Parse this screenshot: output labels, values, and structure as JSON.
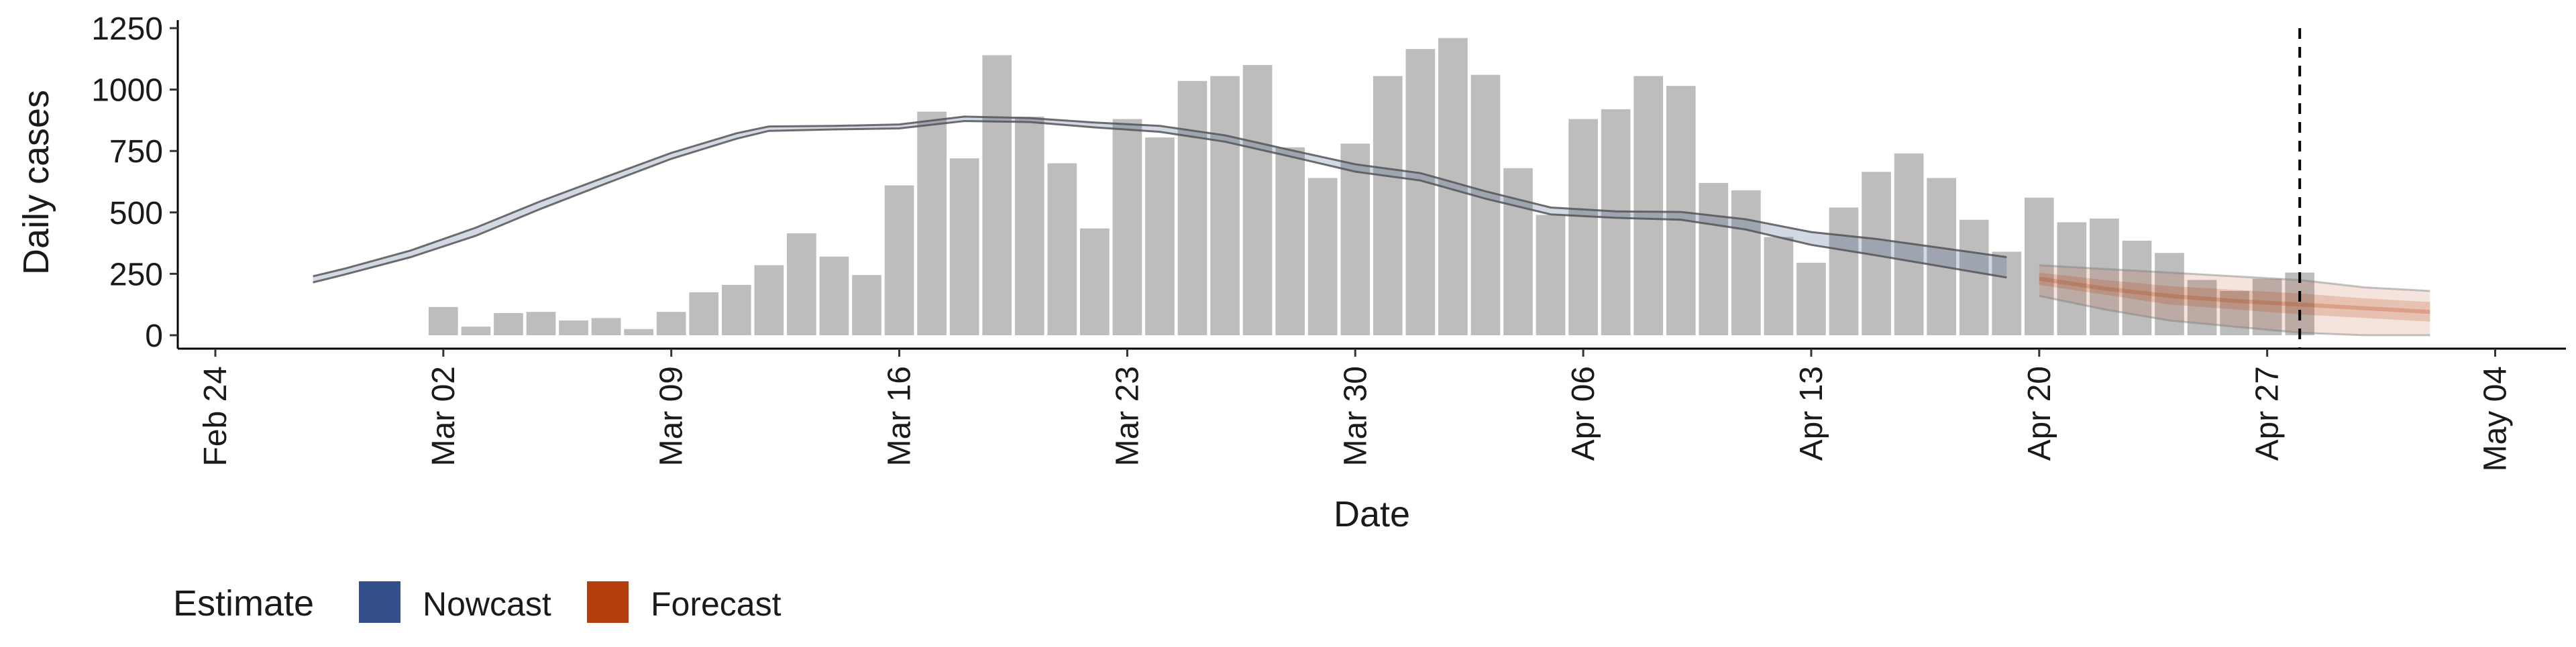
{
  "chart_data": {
    "type": "bar",
    "xlabel": "Date",
    "ylabel": "Daily cases",
    "ylim": [
      0,
      1250
    ],
    "yticks": [
      0,
      250,
      500,
      750,
      1000,
      1250
    ],
    "xtick_labels": [
      {
        "date": "2020-02-24",
        "label": "Feb 24"
      },
      {
        "date": "2020-03-02",
        "label": "Mar 02"
      },
      {
        "date": "2020-03-09",
        "label": "Mar 09"
      },
      {
        "date": "2020-03-16",
        "label": "Mar 16"
      },
      {
        "date": "2020-03-23",
        "label": "Mar 23"
      },
      {
        "date": "2020-03-30",
        "label": "Mar 30"
      },
      {
        "date": "2020-04-06",
        "label": "Apr 06"
      },
      {
        "date": "2020-04-13",
        "label": "Apr 13"
      },
      {
        "date": "2020-04-20",
        "label": "Apr 20"
      },
      {
        "date": "2020-04-27",
        "label": "Apr 27"
      },
      {
        "date": "2020-05-04",
        "label": "May 04"
      }
    ],
    "xlim": [
      "2020-02-24",
      "2020-05-04"
    ],
    "grid": false,
    "legend_position": "bottom-left",
    "legend": {
      "title": "Estimate",
      "items": [
        {
          "label": "Nowcast",
          "color": "#34508a"
        },
        {
          "label": "Forecast",
          "color": "#b33d0c"
        }
      ]
    },
    "colors": {
      "bar": "#bdbdbd",
      "nowcast_band": "#34508a",
      "forecast_band": "#b33d0c",
      "line": "#555555"
    },
    "vline_date": "2020-04-28",
    "bars": {
      "dates": [
        "2020-03-02",
        "2020-03-03",
        "2020-03-04",
        "2020-03-05",
        "2020-03-06",
        "2020-03-07",
        "2020-03-08",
        "2020-03-09",
        "2020-03-10",
        "2020-03-11",
        "2020-03-12",
        "2020-03-13",
        "2020-03-14",
        "2020-03-15",
        "2020-03-16",
        "2020-03-17",
        "2020-03-18",
        "2020-03-19",
        "2020-03-20",
        "2020-03-21",
        "2020-03-22",
        "2020-03-23",
        "2020-03-24",
        "2020-03-25",
        "2020-03-26",
        "2020-03-27",
        "2020-03-28",
        "2020-03-29",
        "2020-03-30",
        "2020-03-31",
        "2020-04-01",
        "2020-04-02",
        "2020-04-03",
        "2020-04-04",
        "2020-04-05",
        "2020-04-06",
        "2020-04-07",
        "2020-04-08",
        "2020-04-09",
        "2020-04-10",
        "2020-04-11",
        "2020-04-12",
        "2020-04-13",
        "2020-04-14",
        "2020-04-15",
        "2020-04-16",
        "2020-04-17",
        "2020-04-18",
        "2020-04-19",
        "2020-04-20",
        "2020-04-21",
        "2020-04-22",
        "2020-04-23",
        "2020-04-24",
        "2020-04-25",
        "2020-04-26",
        "2020-04-27",
        "2020-04-28"
      ],
      "values": [
        115,
        35,
        90,
        95,
        60,
        70,
        25,
        95,
        175,
        205,
        285,
        415,
        320,
        245,
        610,
        910,
        720,
        1140,
        890,
        700,
        435,
        880,
        805,
        1035,
        1055,
        1100,
        765,
        640,
        780,
        1055,
        1165,
        1210,
        1060,
        680,
        490,
        880,
        920,
        1055,
        1015,
        620,
        590,
        400,
        295,
        520,
        665,
        740,
        640,
        470,
        340,
        560,
        460,
        475,
        385,
        335,
        225,
        180,
        230,
        255
      ]
    },
    "nowcast": {
      "dates": [
        "2020-02-27",
        "2020-02-28",
        "2020-03-01",
        "2020-03-03",
        "2020-03-05",
        "2020-03-07",
        "2020-03-09",
        "2020-03-11",
        "2020-03-12",
        "2020-03-14",
        "2020-03-16",
        "2020-03-18",
        "2020-03-20",
        "2020-03-22",
        "2020-03-24",
        "2020-03-26",
        "2020-03-28",
        "2020-03-30",
        "2020-04-01",
        "2020-04-03",
        "2020-04-05",
        "2020-04-07",
        "2020-04-09",
        "2020-04-11",
        "2020-04-13",
        "2020-04-15",
        "2020-04-17",
        "2020-04-19"
      ],
      "median": [
        225,
        260,
        330,
        420,
        530,
        630,
        730,
        810,
        840,
        845,
        850,
        880,
        875,
        855,
        840,
        800,
        740,
        680,
        645,
        570,
        505,
        490,
        485,
        450,
        395,
        360,
        320,
        285
      ],
      "lower": [
        215,
        248,
        318,
        405,
        515,
        618,
        718,
        800,
        832,
        838,
        842,
        872,
        868,
        846,
        828,
        788,
        728,
        666,
        630,
        556,
        492,
        478,
        470,
        430,
        368,
        325,
        280,
        235
      ],
      "upper": [
        240,
        272,
        345,
        438,
        546,
        645,
        742,
        822,
        850,
        852,
        858,
        890,
        884,
        866,
        852,
        814,
        754,
        696,
        660,
        586,
        520,
        504,
        502,
        472,
        420,
        392,
        355,
        318
      ]
    },
    "forecast": {
      "dates": [
        "2020-04-20",
        "2020-04-22",
        "2020-04-24",
        "2020-04-26",
        "2020-04-28",
        "2020-04-30",
        "2020-05-02"
      ],
      "median": [
        230,
        190,
        160,
        140,
        125,
        110,
        95
      ],
      "lower_90": [
        160,
        105,
        60,
        35,
        10,
        0,
        0
      ],
      "upper_90": [
        285,
        270,
        255,
        240,
        225,
        195,
        180
      ],
      "lower_50": [
        205,
        165,
        125,
        105,
        85,
        70,
        55
      ],
      "upper_50": [
        255,
        225,
        200,
        185,
        170,
        150,
        135
      ]
    }
  }
}
